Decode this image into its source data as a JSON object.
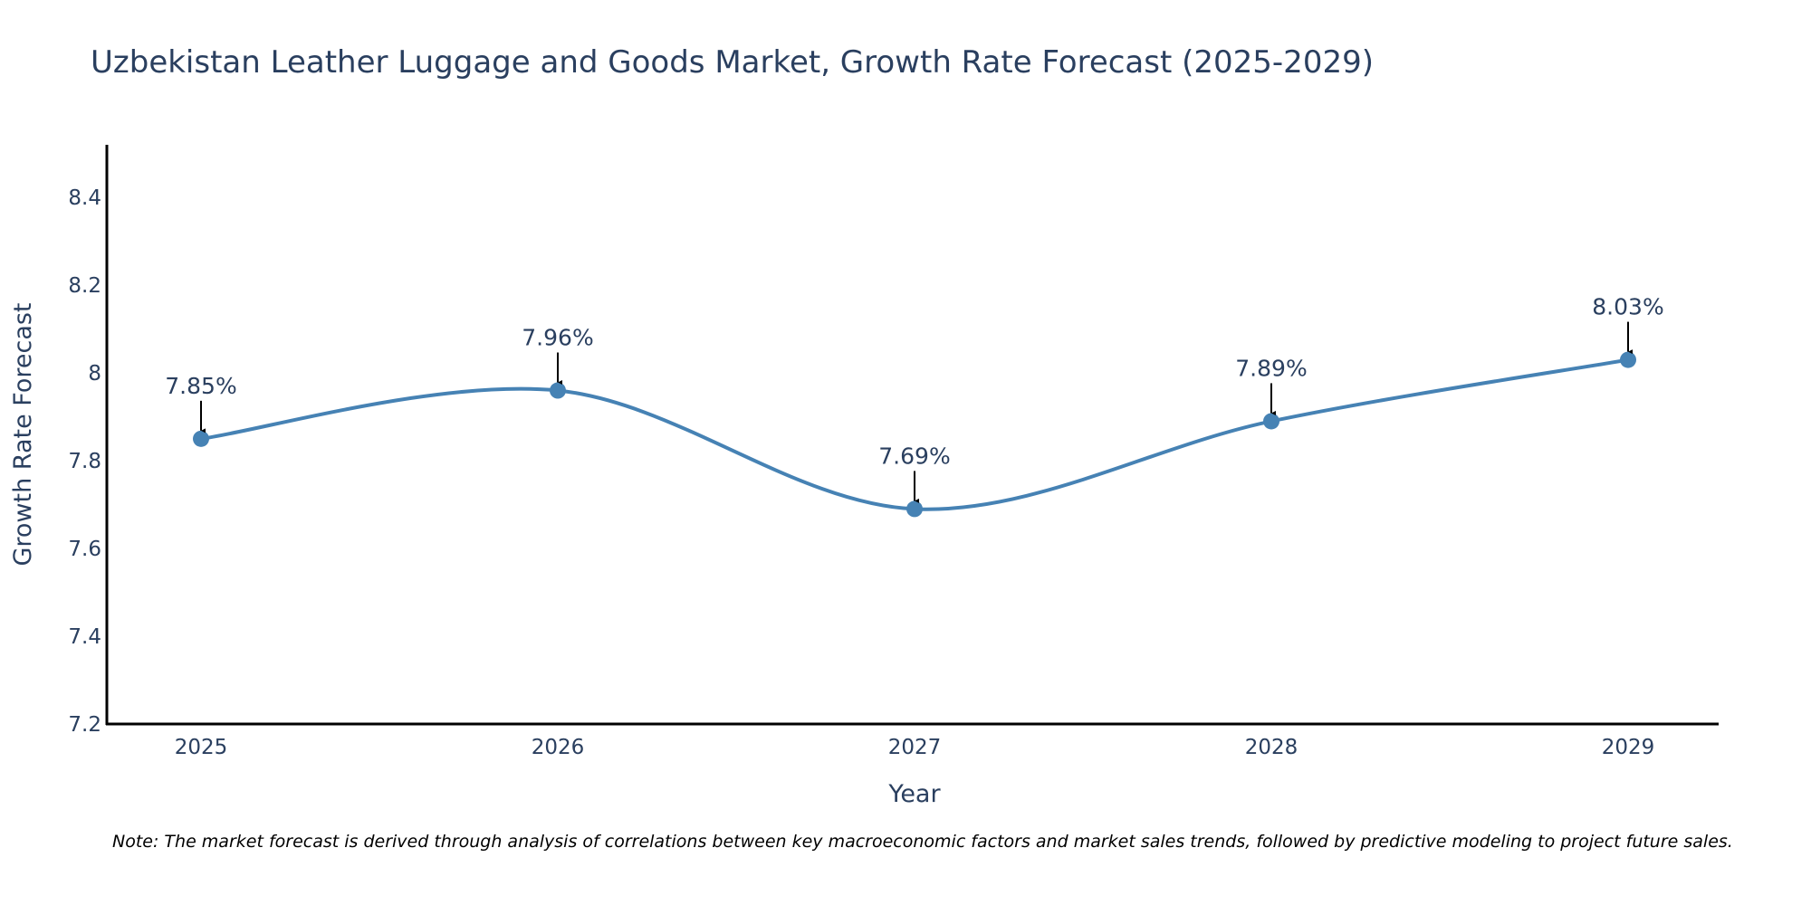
{
  "colors": {
    "line": "#4682B4",
    "marker": "#4682B4",
    "axis": "#000000",
    "arrow": "#000000",
    "text": "#2a3f5f"
  },
  "chart_data": {
    "type": "line",
    "title": "Uzbekistan Leather Luggage and Goods Market, Growth Rate Forecast (2025-2029)",
    "xlabel": "Year",
    "ylabel": "Growth Rate Forecast",
    "categories": [
      "2025",
      "2026",
      "2027",
      "2028",
      "2029"
    ],
    "series": [
      {
        "name": "Growth Rate Forecast",
        "values": [
          7.85,
          7.96,
          7.69,
          7.89,
          8.03
        ],
        "labels": [
          "7.85%",
          "7.96%",
          "7.69%",
          "7.89%",
          "8.03%"
        ]
      }
    ],
    "ylim": [
      7.2,
      8.52
    ],
    "yticks": [
      7.2,
      7.4,
      7.6,
      7.8,
      8,
      8.2,
      8.4
    ],
    "ytick_labels": [
      "7.2",
      "7.4",
      "7.6",
      "7.8",
      "8",
      "8.2",
      "8.4"
    ],
    "grid": false,
    "smoothing": "spline"
  },
  "note": "Note: The market forecast is derived through analysis of correlations between key macroeconomic factors and market sales trends, followed by predictive modeling to project future sales."
}
